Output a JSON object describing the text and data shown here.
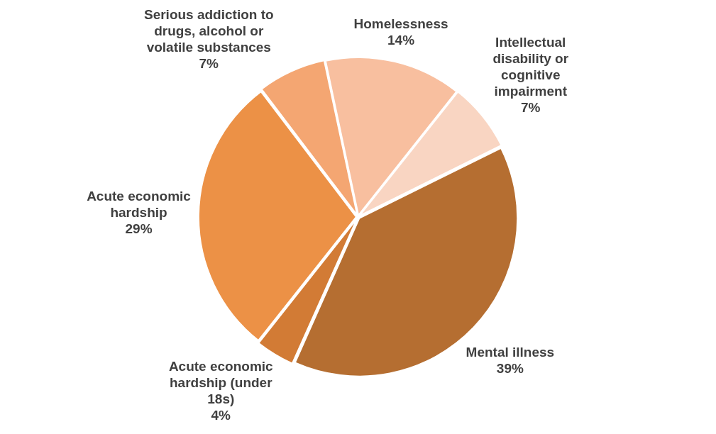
{
  "chart_data": {
    "type": "pie",
    "categories": [
      "Homelessness",
      "Intellectual disability or cognitive impairment",
      "Mental illness",
      "Acute economic hardship (under 18s)",
      "Acute economic hardship",
      "Serious addiction to drugs, alcohol or volatile substances"
    ],
    "values": [
      14,
      7,
      39,
      4,
      29,
      7
    ],
    "colors": [
      "#f8bf9f",
      "#f9d5c2",
      "#b56e31",
      "#d27b35",
      "#ec9146",
      "#f4a672"
    ],
    "value_labels": [
      "14%",
      "7%",
      "39%",
      "4%",
      "29%",
      "7%"
    ],
    "legend": false
  }
}
